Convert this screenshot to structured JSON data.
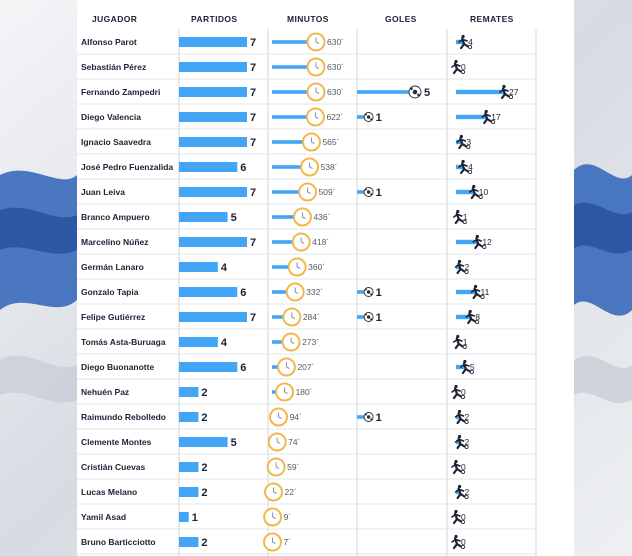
{
  "colors": {
    "bar": "#42a5f5",
    "dark": "#1c2233",
    "clock": "#f2b84b",
    "accent_blue": "#2f63b8"
  },
  "chart_data": {
    "type": "table",
    "columns": [
      "JUGADOR",
      "PARTIDOS",
      "MINUTOS",
      "GOLES",
      "REMATES"
    ],
    "axis_max": {
      "partidos": 7,
      "minutos": 630,
      "goles": 5,
      "remates": 27
    },
    "rows": [
      {
        "jugador": "Alfonso Parot",
        "partidos": 7,
        "minutos": 630,
        "goles": 0,
        "remates": 4
      },
      {
        "jugador": "Sebastián Pérez",
        "partidos": 7,
        "minutos": 630,
        "goles": 0,
        "remates": 0
      },
      {
        "jugador": "Fernando Zampedri",
        "partidos": 7,
        "minutos": 630,
        "goles": 5,
        "remates": 27
      },
      {
        "jugador": "Diego Valencia",
        "partidos": 7,
        "minutos": 622,
        "goles": 1,
        "remates": 17
      },
      {
        "jugador": "Ignacio Saavedra",
        "partidos": 7,
        "minutos": 565,
        "goles": 0,
        "remates": 3
      },
      {
        "jugador": "José Pedro Fuenzalida",
        "partidos": 6,
        "minutos": 538,
        "goles": 0,
        "remates": 4
      },
      {
        "jugador": "Juan Leiva",
        "partidos": 7,
        "minutos": 509,
        "goles": 1,
        "remates": 10
      },
      {
        "jugador": "Branco Ampuero",
        "partidos": 5,
        "minutos": 436,
        "goles": 0,
        "remates": 1
      },
      {
        "jugador": "Marcelino Núñez",
        "partidos": 7,
        "minutos": 418,
        "goles": 0,
        "remates": 12
      },
      {
        "jugador": "Germán Lanaro",
        "partidos": 4,
        "minutos": 360,
        "goles": 0,
        "remates": 2
      },
      {
        "jugador": "Gonzalo Tapia",
        "partidos": 6,
        "minutos": 332,
        "goles": 1,
        "remates": 11
      },
      {
        "jugador": "Felipe Gutiérrez",
        "partidos": 7,
        "minutos": 284,
        "goles": 1,
        "remates": 8
      },
      {
        "jugador": "Tomás Asta-Buruaga",
        "partidos": 4,
        "minutos": 273,
        "goles": 0,
        "remates": 1
      },
      {
        "jugador": "Diego Buonanotte",
        "partidos": 6,
        "minutos": 207,
        "goles": 0,
        "remates": 5
      },
      {
        "jugador": "Nehuén Paz",
        "partidos": 2,
        "minutos": 180,
        "goles": 0,
        "remates": 0
      },
      {
        "jugador": "Raimundo Rebolledo",
        "partidos": 2,
        "minutos": 94,
        "goles": 1,
        "remates": 2
      },
      {
        "jugador": "Clemente Montes",
        "partidos": 5,
        "minutos": 74,
        "goles": 0,
        "remates": 2
      },
      {
        "jugador": "Cristián Cuevas",
        "partidos": 2,
        "minutos": 59,
        "goles": 0,
        "remates": 0
      },
      {
        "jugador": "Lucas Melano",
        "partidos": 2,
        "minutos": 22,
        "goles": 0,
        "remates": 2
      },
      {
        "jugador": "Yamil Asad",
        "partidos": 1,
        "minutos": 9,
        "goles": 0,
        "remates": 0
      },
      {
        "jugador": "Bruno Barticciotto",
        "partidos": 2,
        "minutos": 7,
        "goles": 0,
        "remates": 0
      }
    ]
  }
}
